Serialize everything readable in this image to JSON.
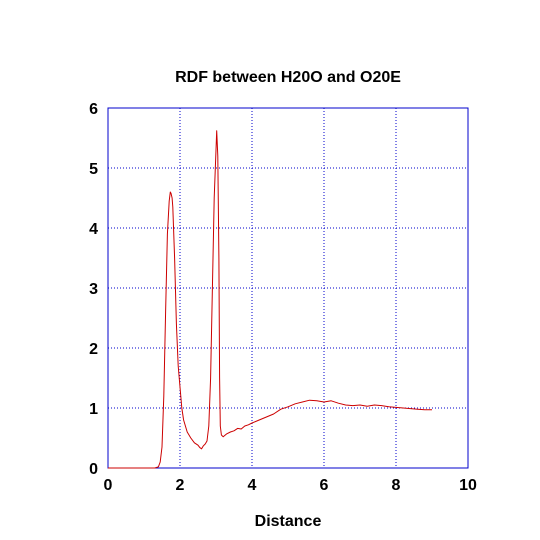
{
  "chart_data": {
    "type": "line",
    "title": "RDF between H20O and O20E",
    "xlabel": "Distance",
    "ylabel": "",
    "xlim": [
      0,
      10
    ],
    "ylim": [
      0,
      6
    ],
    "x_ticks": [
      "0",
      "2",
      "4",
      "6",
      "8",
      "10"
    ],
    "y_ticks": [
      "0",
      "1",
      "2",
      "3",
      "4",
      "5",
      "6"
    ],
    "grid": true,
    "colors": {
      "frame": "#0000cc",
      "grid": "#0000cc",
      "series": "#cc0000"
    },
    "series": [
      {
        "name": "",
        "x": [
          0,
          0.5,
          1.0,
          1.3,
          1.4,
          1.45,
          1.5,
          1.55,
          1.6,
          1.65,
          1.7,
          1.73,
          1.75,
          1.78,
          1.8,
          1.85,
          1.9,
          1.95,
          2.0,
          2.05,
          2.1,
          2.2,
          2.3,
          2.4,
          2.5,
          2.55,
          2.6,
          2.65,
          2.7,
          2.75,
          2.8,
          2.85,
          2.9,
          2.95,
          3.0,
          3.02,
          3.05,
          3.08,
          3.1,
          3.12,
          3.15,
          3.2,
          3.3,
          3.4,
          3.5,
          3.6,
          3.7,
          3.8,
          3.9,
          4.0,
          4.2,
          4.4,
          4.6,
          4.8,
          5.0,
          5.2,
          5.4,
          5.6,
          5.8,
          6.0,
          6.2,
          6.4,
          6.6,
          6.8,
          7.0,
          7.2,
          7.4,
          7.6,
          7.8,
          8.0,
          8.2,
          8.4,
          8.6,
          8.8,
          9.0
        ],
        "y": [
          0,
          0,
          0,
          0,
          0.02,
          0.1,
          0.35,
          1.2,
          2.6,
          3.9,
          4.45,
          4.6,
          4.58,
          4.5,
          4.35,
          3.5,
          2.4,
          1.7,
          1.35,
          1.0,
          0.8,
          0.6,
          0.5,
          0.42,
          0.38,
          0.34,
          0.32,
          0.37,
          0.4,
          0.45,
          0.7,
          1.5,
          3.0,
          4.5,
          5.3,
          5.62,
          5.2,
          3.5,
          1.5,
          0.7,
          0.55,
          0.52,
          0.57,
          0.6,
          0.62,
          0.66,
          0.65,
          0.7,
          0.72,
          0.75,
          0.8,
          0.85,
          0.9,
          0.98,
          1.02,
          1.07,
          1.1,
          1.13,
          1.12,
          1.1,
          1.12,
          1.08,
          1.05,
          1.04,
          1.05,
          1.03,
          1.05,
          1.04,
          1.02,
          1.01,
          1.0,
          0.99,
          0.98,
          0.97,
          0.97
        ]
      }
    ]
  }
}
